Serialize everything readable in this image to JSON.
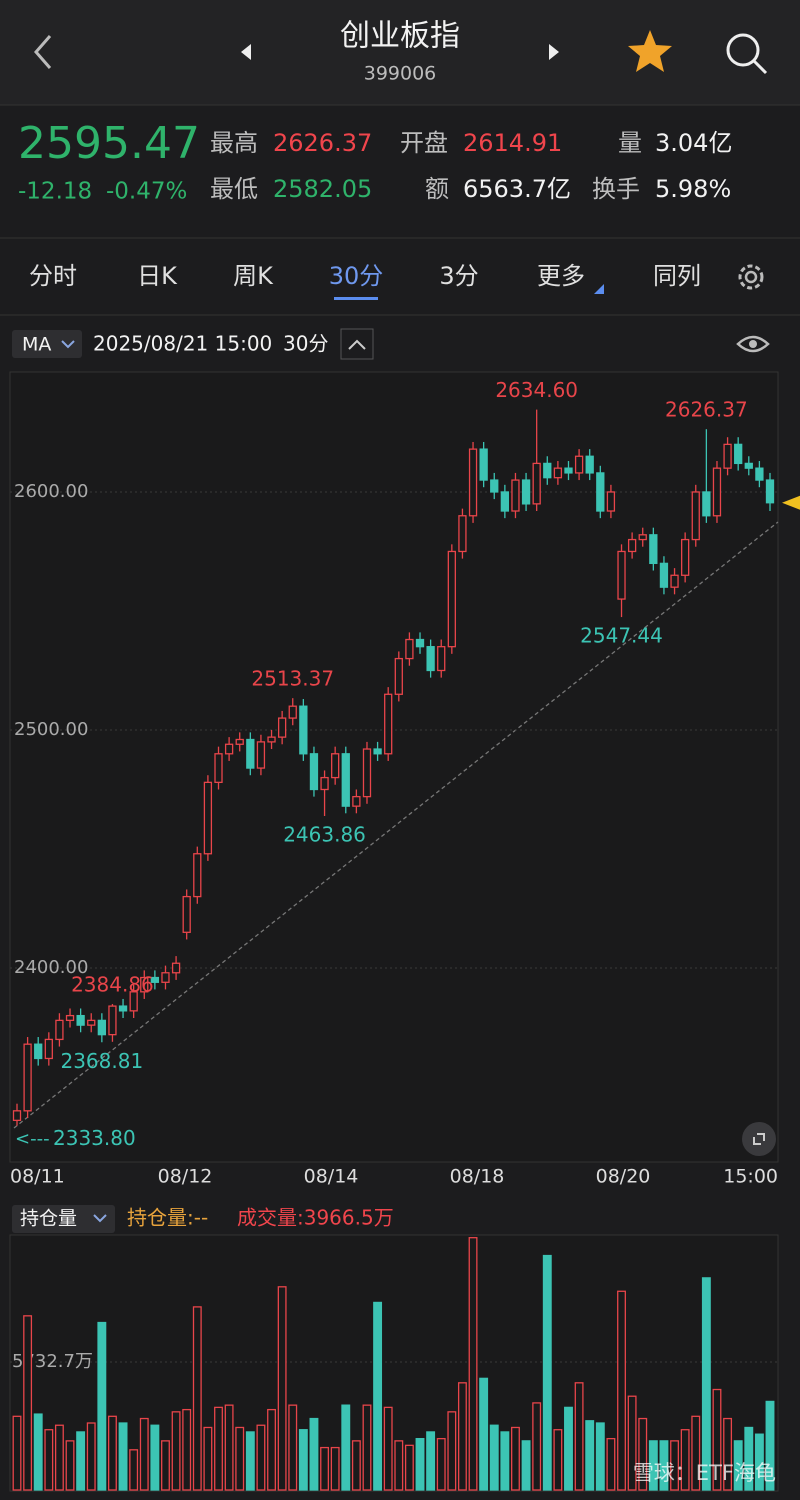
{
  "header": {
    "title": "创业板指",
    "code": "399006"
  },
  "quote": {
    "price": "2595.47",
    "change": "-12.18",
    "change_pct": "-0.47%",
    "fields": [
      {
        "label": "最高",
        "value": "2626.37"
      },
      {
        "label": "最低",
        "value": "2582.05"
      },
      {
        "label": "开盘",
        "value": "2614.91"
      },
      {
        "label": "额",
        "value": "6563.7亿"
      },
      {
        "label": "量",
        "value": "3.04亿"
      },
      {
        "label": "换手",
        "value": "5.98%"
      }
    ]
  },
  "tabs": [
    "分时",
    "日K",
    "周K",
    "30分",
    "3分",
    "更多",
    "同列"
  ],
  "toolbar": {
    "indicator": "MA",
    "datetime": "2025/08/21 15:00",
    "period": "30分"
  },
  "volume_toolbar": {
    "selector": "持仓量",
    "open_interest": "持仓量:--",
    "volume": "成交量:3966.5万"
  },
  "watermark": "雪球：ETF海龟",
  "chart_data": [
    {
      "type": "candlestick",
      "x_labels": [
        "08/11",
        "08/12",
        "08/14",
        "08/18",
        "08/20",
        "15:00"
      ],
      "open": [
        2336,
        2340,
        2368,
        2362,
        2370,
        2378,
        2380,
        2376,
        2378,
        2372,
        2384,
        2382,
        2390,
        2396,
        2394,
        2398,
        2415,
        2430,
        2448,
        2478,
        2490,
        2494,
        2496,
        2484,
        2495,
        2497,
        2505,
        2510,
        2490,
        2475,
        2480,
        2490,
        2468,
        2472,
        2492,
        2490,
        2515,
        2530,
        2538,
        2535,
        2525,
        2535,
        2575,
        2590,
        2618,
        2605,
        2600,
        2592,
        2605,
        2595,
        2612,
        2606,
        2610,
        2608,
        2615,
        2608,
        2592,
        2555,
        2575,
        2580,
        2582,
        2570,
        2560,
        2565,
        2580,
        2600,
        2590,
        2610,
        2620,
        2612,
        2610,
        2605
      ],
      "high": [
        2343,
        2371,
        2371,
        2373,
        2381,
        2383,
        2383,
        2381,
        2381,
        2384.86,
        2387,
        2393,
        2399,
        2399,
        2401,
        2405,
        2433,
        2451,
        2481,
        2493,
        2497,
        2499,
        2499,
        2498,
        2500,
        2508,
        2513.37,
        2513,
        2493,
        2483,
        2493,
        2493,
        2475,
        2495,
        2495,
        2518,
        2533,
        2541,
        2541,
        2538,
        2538,
        2578,
        2593,
        2621,
        2621,
        2608,
        2603,
        2608,
        2608,
        2634.6,
        2615,
        2613,
        2613,
        2618,
        2618,
        2611,
        2603,
        2578,
        2583,
        2585,
        2585,
        2573,
        2568,
        2583,
        2603,
        2626.37,
        2613,
        2623,
        2623,
        2615,
        2613,
        2608
      ],
      "low": [
        2333.8,
        2337,
        2359,
        2359,
        2367,
        2375,
        2373,
        2373,
        2368.81,
        2369,
        2379,
        2379,
        2387,
        2391,
        2391,
        2395,
        2412,
        2427,
        2445,
        2475,
        2487,
        2491,
        2481,
        2481,
        2492,
        2494,
        2502,
        2487,
        2472,
        2463.86,
        2477,
        2465,
        2465,
        2469,
        2487,
        2487,
        2512,
        2527,
        2532,
        2522,
        2522,
        2532,
        2572,
        2587,
        2602,
        2597,
        2589,
        2589,
        2592,
        2592,
        2603,
        2603,
        2605,
        2605,
        2605,
        2589,
        2589,
        2547.44,
        2572,
        2577,
        2567,
        2557,
        2557,
        2562,
        2577,
        2587,
        2587,
        2607,
        2609,
        2607,
        2602,
        2592
      ],
      "close": [
        2340,
        2368,
        2362,
        2370,
        2378,
        2380,
        2376,
        2378,
        2372,
        2384,
        2382,
        2390,
        2396,
        2394,
        2398,
        2402,
        2430,
        2448,
        2478,
        2490,
        2494,
        2496,
        2484,
        2495,
        2497,
        2505,
        2510,
        2490,
        2475,
        2480,
        2490,
        2468,
        2472,
        2492,
        2490,
        2515,
        2530,
        2538,
        2535,
        2525,
        2535,
        2575,
        2590,
        2618,
        2605,
        2600,
        2592,
        2605,
        2595,
        2612,
        2606,
        2610,
        2608,
        2615,
        2608,
        2592,
        2600,
        2575,
        2580,
        2582,
        2570,
        2560,
        2565,
        2580,
        2600,
        2590,
        2610,
        2620,
        2612,
        2610,
        2605,
        2595.47
      ],
      "ylim": [
        2318.5,
        2650.4
      ],
      "yticks": [
        {
          "value": 2400,
          "label": "2400.00"
        },
        {
          "value": 2500,
          "label": "2500.00"
        },
        {
          "value": 2600,
          "label": "2600.00"
        }
      ],
      "grid": true,
      "up_color": "#e8454a",
      "down_color": "#3cc4b4",
      "annotations": [
        {
          "kind": "high",
          "value": 2634.6,
          "label": "2634.60"
        },
        {
          "kind": "high",
          "value": 2626.37,
          "label": "2626.37"
        },
        {
          "kind": "high",
          "value": 2513.37,
          "label": "2513.37"
        },
        {
          "kind": "high",
          "value": 2384.86,
          "label": "2384.86"
        },
        {
          "kind": "low",
          "value": 2547.44,
          "label": "2547.44"
        },
        {
          "kind": "low",
          "value": 2463.86,
          "label": "2463.86"
        },
        {
          "kind": "low",
          "value": 2368.81,
          "label": "2368.81"
        },
        {
          "kind": "low",
          "value": 2333.8,
          "label": "2333.80"
        }
      ]
    },
    {
      "type": "bar",
      "values": [
        3300,
        7800,
        3400,
        2700,
        2900,
        2200,
        2600,
        3000,
        7500,
        3300,
        3000,
        1800,
        3200,
        2900,
        2200,
        3500,
        3600,
        8200,
        2800,
        3700,
        3800,
        2800,
        2600,
        2900,
        3600,
        9100,
        3800,
        2700,
        3200,
        1900,
        1900,
        3800,
        2200,
        3800,
        8400,
        3700,
        2200,
        2000,
        2300,
        2600,
        2300,
        3500,
        4800,
        11300,
        5000,
        2900,
        2600,
        2800,
        2200,
        3900,
        10500,
        2700,
        3700,
        4800,
        3100,
        3000,
        2300,
        8900,
        4200,
        3200,
        2200,
        2200,
        2200,
        2700,
        3300,
        9500,
        4500,
        3200,
        2200,
        2800,
        2500,
        3966.5
      ],
      "ylim": [
        0,
        11420
      ],
      "yticks": [
        {
          "value": 5732.7,
          "label": "5732.7万"
        }
      ],
      "grid": true
    }
  ]
}
